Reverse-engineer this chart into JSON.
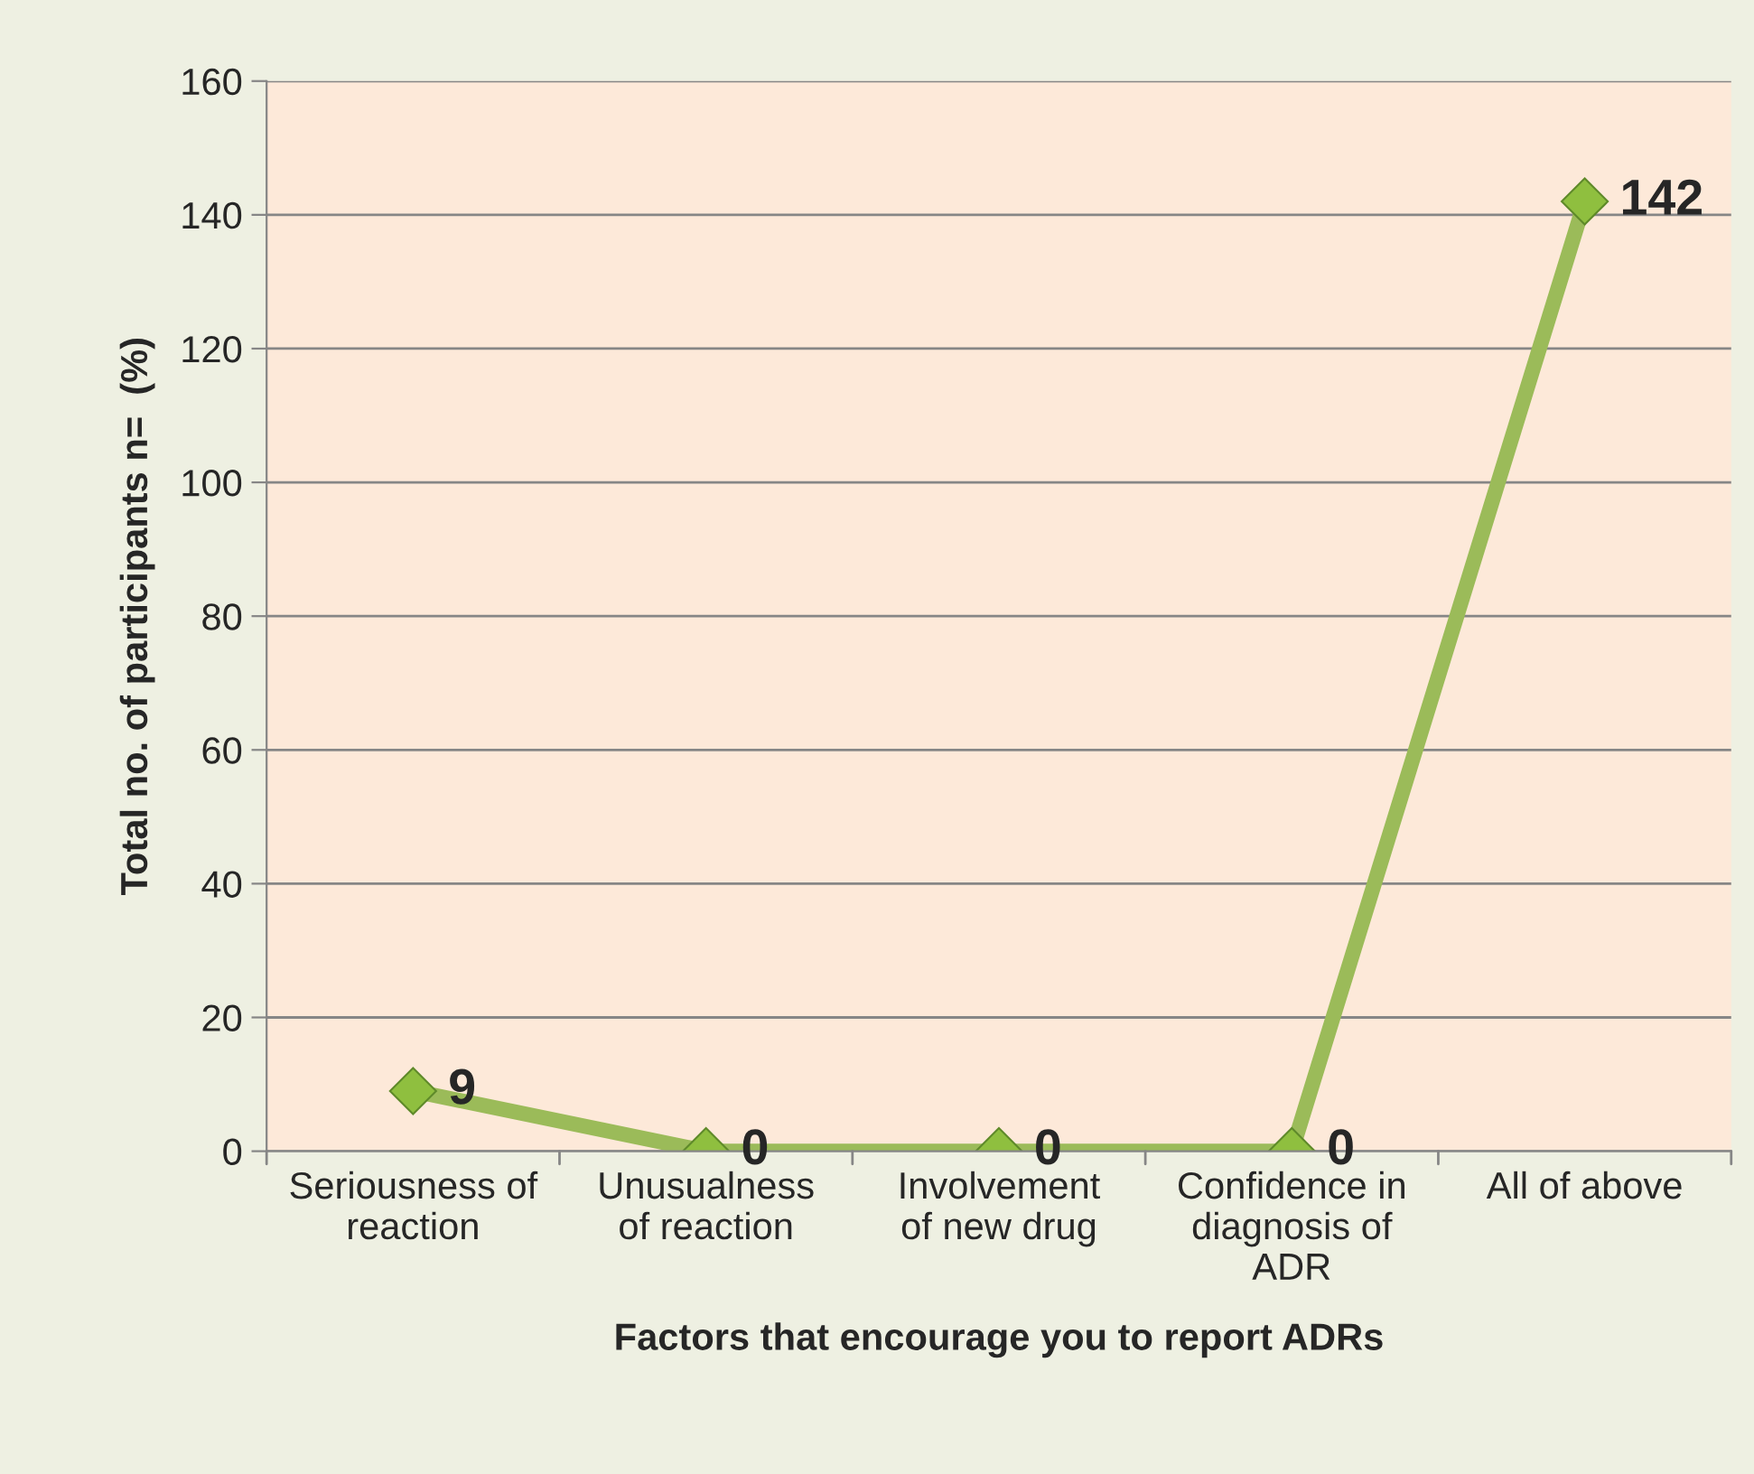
{
  "chart_data": {
    "type": "line",
    "xlabel": "Factors that encourage you to report ADRs",
    "ylabel": "Total no. of participants n=  (%)",
    "categories": [
      "Seriousness of\nreaction",
      "Unusualness\nof reaction",
      "Involvement\nof new drug",
      "Confidence in\ndiagnosis of\nADR",
      "All of above"
    ],
    "series": [
      {
        "color": "#9bbb59",
        "values": [
          9,
          0,
          0,
          0,
          142
        ]
      }
    ],
    "ylim": [
      0,
      160
    ],
    "yticks": [
      0,
      20,
      40,
      60,
      80,
      100,
      120,
      140,
      160
    ],
    "grid": "y",
    "marker": "diamond",
    "line_style": "solid",
    "data_labels": true
  }
}
